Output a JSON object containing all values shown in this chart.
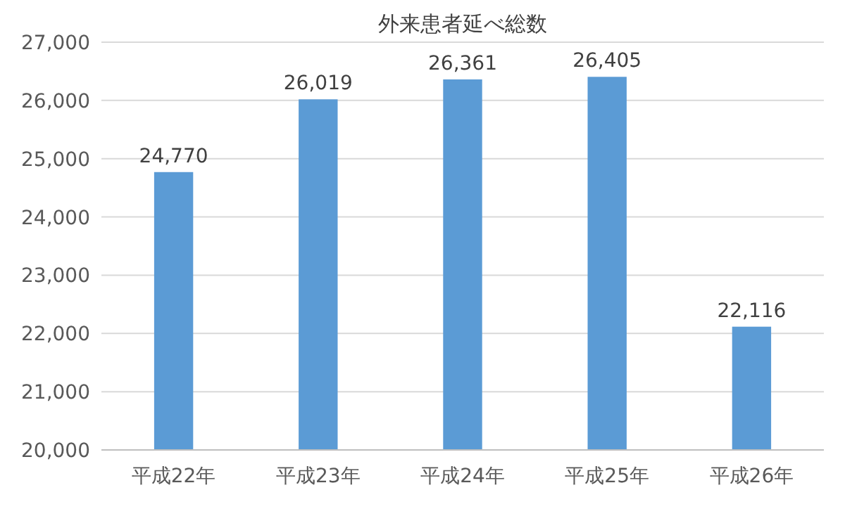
{
  "chart_data": {
    "type": "bar",
    "title": "外来患者延べ総数",
    "categories": [
      "平成22年",
      "平成23年",
      "平成24年",
      "平成25年",
      "平成26年"
    ],
    "values": [
      24770,
      26019,
      26361,
      26405,
      22116
    ],
    "value_labels": [
      "24,770",
      "26,019",
      "26,361",
      "26,405",
      "22,116"
    ],
    "color": "#5b9bd5",
    "ylim": [
      20000,
      27000
    ],
    "yticks": [
      {
        "value": 20000,
        "label": "20,000"
      },
      {
        "value": 21000,
        "label": "21,000"
      },
      {
        "value": 22000,
        "label": "22,000"
      },
      {
        "value": 23000,
        "label": "23,000"
      },
      {
        "value": 24000,
        "label": "24,000"
      },
      {
        "value": 25000,
        "label": "25,000"
      },
      {
        "value": 26000,
        "label": "26,000"
      },
      {
        "value": 27000,
        "label": "27,000"
      }
    ],
    "grid": "y"
  }
}
